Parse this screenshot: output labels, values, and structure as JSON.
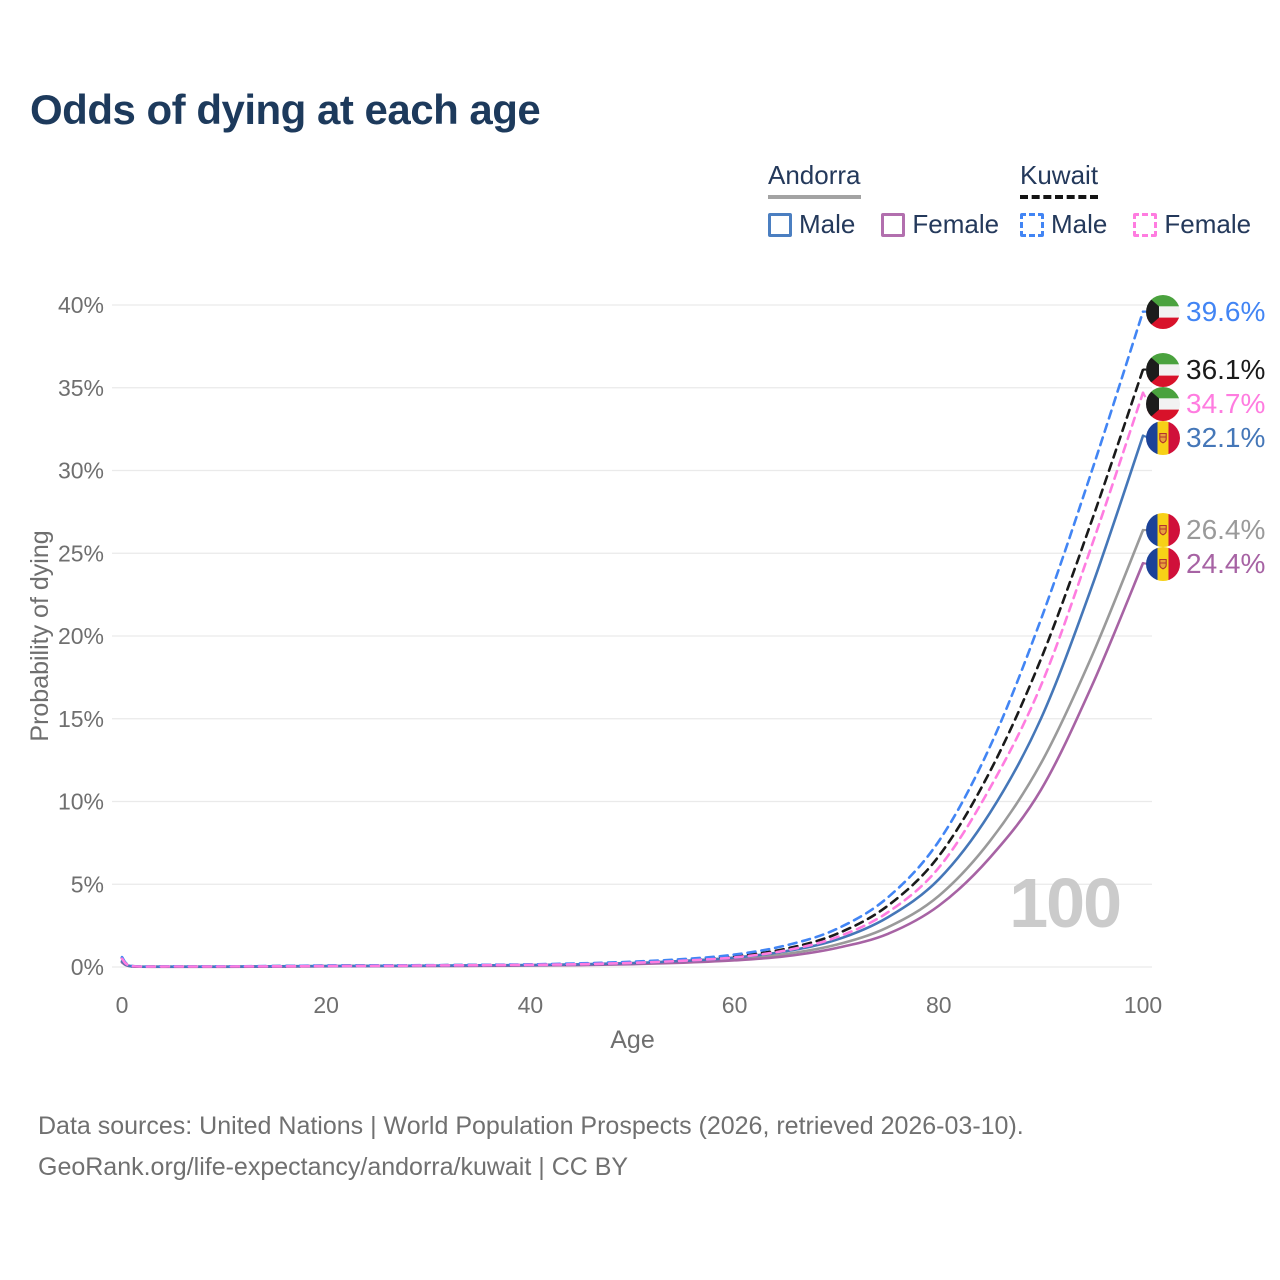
{
  "title": "Odds of dying at each age",
  "legend": {
    "groups": [
      {
        "country": "Andorra",
        "line_style": "solid",
        "items": [
          {
            "label": "Male",
            "color": "#4b7fc1"
          },
          {
            "label": "Female",
            "color": "#b26fae"
          }
        ]
      },
      {
        "country": "Kuwait",
        "line_style": "dashed",
        "items": [
          {
            "label": "Male",
            "color": "#4285f4"
          },
          {
            "label": "Female",
            "color": "#ff7ce0"
          }
        ]
      }
    ]
  },
  "chart_data": {
    "type": "line",
    "title": "Odds of dying at each age",
    "xlabel": "Age",
    "ylabel": "Probability of dying",
    "xlim": [
      0,
      100
    ],
    "ylim": [
      0,
      40
    ],
    "xticks": [
      0,
      20,
      40,
      60,
      80,
      100
    ],
    "yticks": [
      0,
      5,
      10,
      15,
      20,
      25,
      30,
      35,
      40
    ],
    "ytick_suffix": "%",
    "grid": true,
    "legend_position": "top-right",
    "watermark": "100",
    "x": [
      0,
      1,
      5,
      10,
      15,
      20,
      25,
      30,
      35,
      40,
      45,
      50,
      55,
      60,
      65,
      70,
      75,
      80,
      85,
      90,
      95,
      100
    ],
    "series": [
      {
        "name": "Andorra Both sexes",
        "country": "Andorra",
        "sex": "Both",
        "color": "#9a9a9a",
        "dash": false,
        "end_value": 26.4,
        "end_label": "26.4%",
        "values": [
          0.3,
          0.03,
          0.02,
          0.02,
          0.03,
          0.05,
          0.06,
          0.07,
          0.08,
          0.1,
          0.13,
          0.2,
          0.3,
          0.47,
          0.78,
          1.35,
          2.4,
          4.3,
          7.6,
          12.3,
          18.8,
          26.4
        ]
      },
      {
        "name": "Andorra Female",
        "country": "Andorra",
        "sex": "Female",
        "color": "#a763a4",
        "dash": false,
        "end_value": 24.4,
        "end_label": "24.4%",
        "values": [
          0.28,
          0.03,
          0.01,
          0.01,
          0.02,
          0.04,
          0.05,
          0.06,
          0.07,
          0.09,
          0.12,
          0.17,
          0.26,
          0.4,
          0.65,
          1.15,
          2.0,
          3.7,
          6.6,
          10.7,
          17.0,
          24.4
        ]
      },
      {
        "name": "Andorra Male",
        "country": "Andorra",
        "sex": "Male",
        "color": "#4577b8",
        "dash": false,
        "end_value": 32.1,
        "end_label": "32.1%",
        "values": [
          0.35,
          0.04,
          0.02,
          0.02,
          0.04,
          0.06,
          0.07,
          0.08,
          0.1,
          0.12,
          0.16,
          0.24,
          0.37,
          0.57,
          0.95,
          1.65,
          3.0,
          5.3,
          9.3,
          15.0,
          23.0,
          32.1
        ]
      },
      {
        "name": "Kuwait Both sexes",
        "country": "Kuwait",
        "sex": "Both",
        "color": "#1a1a1a",
        "dash": true,
        "end_value": 36.1,
        "end_label": "36.1%",
        "values": [
          0.55,
          0.05,
          0.03,
          0.03,
          0.05,
          0.08,
          0.09,
          0.1,
          0.12,
          0.14,
          0.19,
          0.28,
          0.42,
          0.65,
          1.1,
          2.0,
          3.7,
          6.7,
          11.8,
          18.6,
          27.0,
          36.1
        ]
      },
      {
        "name": "Kuwait Male",
        "country": "Kuwait",
        "sex": "Male",
        "color": "#4285f4",
        "dash": true,
        "end_value": 39.6,
        "end_label": "39.6%",
        "values": [
          0.6,
          0.06,
          0.04,
          0.04,
          0.06,
          0.09,
          0.1,
          0.11,
          0.13,
          0.16,
          0.22,
          0.32,
          0.48,
          0.75,
          1.3,
          2.3,
          4.2,
          7.6,
          13.3,
          21.0,
          30.0,
          39.6
        ]
      },
      {
        "name": "Kuwait Female",
        "country": "Kuwait",
        "sex": "Female",
        "color": "#ff7ce0",
        "dash": true,
        "end_value": 34.7,
        "end_label": "34.7%",
        "values": [
          0.5,
          0.05,
          0.03,
          0.03,
          0.04,
          0.06,
          0.07,
          0.09,
          0.11,
          0.13,
          0.17,
          0.25,
          0.38,
          0.58,
          1.0,
          1.8,
          3.3,
          6.0,
          10.8,
          17.0,
          25.5,
          34.7
        ]
      }
    ]
  },
  "footer": {
    "line1": "Data sources: United Nations | World Population Prospects (2026, retrieved 2026-03-10).",
    "line2": "GeoRank.org/life-expectancy/andorra/kuwait | CC BY"
  }
}
